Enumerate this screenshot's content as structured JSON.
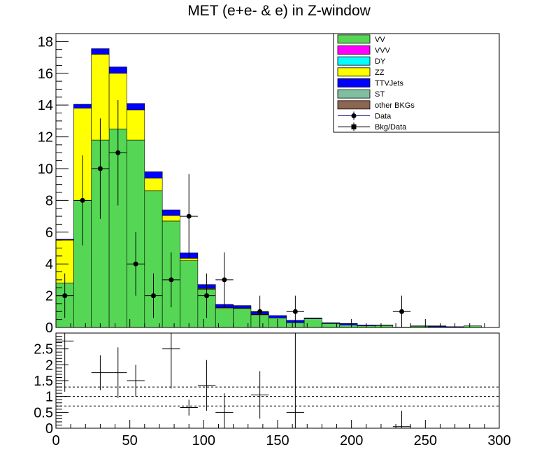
{
  "chart_data": {
    "title": "MET (e+e- & e) in Z-window",
    "type": "stacked-histogram",
    "bin_width": 12,
    "x_range": [
      0,
      300
    ],
    "x_ticks": [
      "0",
      "50",
      "100",
      "150",
      "200",
      "250",
      "300"
    ],
    "main": {
      "y_range": [
        0,
        18.5
      ],
      "y_ticks": [
        "0",
        "2",
        "4",
        "6",
        "8",
        "10",
        "12",
        "14",
        "16",
        "18"
      ],
      "bin_edges": [
        0,
        12,
        24,
        36,
        48,
        60,
        72,
        84,
        96,
        108,
        120,
        132,
        144,
        156,
        168,
        180,
        192,
        204,
        216,
        228,
        240,
        252,
        264,
        276,
        288,
        300
      ],
      "stack": [
        {
          "name": "VV",
          "color": "#55d755",
          "values": [
            2.8,
            8.0,
            11.8,
            12.5,
            11.8,
            8.6,
            6.7,
            4.2,
            2.4,
            1.2,
            1.2,
            0.8,
            0.6,
            0.3,
            0.55,
            0.25,
            0.15,
            0.1,
            0.12,
            0.02,
            0.08,
            0.05,
            0.0,
            0.1,
            0.0
          ]
        },
        {
          "name": "VVV",
          "color": "#ff00ff",
          "values": [
            0,
            0,
            0,
            0,
            0,
            0,
            0,
            0,
            0,
            0,
            0,
            0,
            0,
            0,
            0,
            0,
            0,
            0,
            0,
            0,
            0,
            0,
            0,
            0,
            0
          ]
        },
        {
          "name": "DY",
          "color": "#00ffff",
          "values": [
            0,
            0,
            0,
            0,
            0,
            0,
            0,
            0,
            0,
            0,
            0,
            0,
            0,
            0,
            0,
            0,
            0,
            0,
            0,
            0,
            0,
            0,
            0,
            0,
            0
          ]
        },
        {
          "name": "ZZ",
          "color": "#ffff00",
          "values": [
            2.7,
            5.8,
            5.4,
            3.5,
            1.9,
            0.8,
            0.35,
            0.15,
            0.05,
            0.05,
            0.03,
            0.02,
            0,
            0,
            0,
            0,
            0,
            0,
            0,
            0,
            0,
            0,
            0,
            0,
            0
          ]
        },
        {
          "name": "TTVJets",
          "color": "#0000ff",
          "values": [
            0.05,
            0.25,
            0.35,
            0.4,
            0.4,
            0.4,
            0.35,
            0.35,
            0.25,
            0.2,
            0.15,
            0.15,
            0.15,
            0.15,
            0.05,
            0.05,
            0.1,
            0.05,
            0.03,
            0.0,
            0.02,
            0.05,
            0.05,
            0.0,
            0.0
          ]
        },
        {
          "name": "ST",
          "color": "#7fbf9f",
          "values": [
            0,
            0,
            0,
            0,
            0,
            0,
            0,
            0,
            0,
            0,
            0,
            0,
            0,
            0,
            0,
            0,
            0,
            0,
            0,
            0,
            0,
            0,
            0,
            0,
            0
          ]
        },
        {
          "name": "other BKGs",
          "color": "#8c6650",
          "values": [
            0,
            0,
            0,
            0,
            0,
            0,
            0,
            0,
            0,
            0,
            0,
            0,
            0,
            0,
            0,
            0,
            0,
            0,
            0,
            0,
            0,
            0,
            0,
            0,
            0
          ]
        }
      ],
      "data_points": [
        {
          "x": 6,
          "y": 2,
          "err": 1.4
        },
        {
          "x": 18,
          "y": 8,
          "err": 2.83
        },
        {
          "x": 30,
          "y": 10,
          "err": 3.16
        },
        {
          "x": 42,
          "y": 11,
          "err": 3.32
        },
        {
          "x": 54,
          "y": 4,
          "err": 2.0
        },
        {
          "x": 66,
          "y": 2,
          "err": 1.4
        },
        {
          "x": 78,
          "y": 3,
          "err": 1.73
        },
        {
          "x": 90,
          "y": 7,
          "err": 2.65
        },
        {
          "x": 102,
          "y": 2,
          "err": 1.4
        },
        {
          "x": 114,
          "y": 3,
          "err": 1.73
        },
        {
          "x": 138,
          "y": 1,
          "err": 1.0
        },
        {
          "x": 162,
          "y": 1,
          "err": 1.0
        },
        {
          "x": 234,
          "y": 1,
          "err": 1.0
        }
      ],
      "legend": {
        "position": "top-right",
        "entries": [
          {
            "label": "VV",
            "kind": "box",
            "color": "#55d755"
          },
          {
            "label": "VVV",
            "kind": "box",
            "color": "#ff00ff"
          },
          {
            "label": "DY",
            "kind": "box",
            "color": "#00ffff"
          },
          {
            "label": "ZZ",
            "kind": "box",
            "color": "#ffff00"
          },
          {
            "label": "TTVJets",
            "kind": "box",
            "color": "#0000ff"
          },
          {
            "label": "ST",
            "kind": "box",
            "color": "#7fbf9f"
          },
          {
            "label": "other BKGs",
            "kind": "box",
            "color": "#8c6650"
          },
          {
            "label": "Data",
            "kind": "circle",
            "color": "#000080"
          },
          {
            "label": "Bkg/Data",
            "kind": "square",
            "color": "#000000"
          }
        ]
      }
    },
    "ratio": {
      "y_range": [
        0,
        3.0
      ],
      "y_ticks": [
        "0",
        "0.5",
        "1",
        "1.5",
        "2",
        "2.5"
      ],
      "reference_lines": [
        0.7,
        1.0,
        1.3
      ],
      "points": [
        {
          "x": 6,
          "y": 2.75,
          "err": 1.6
        },
        {
          "x": 30,
          "y": 1.75,
          "err": 0.55
        },
        {
          "x": 42,
          "y": 1.75,
          "err": 0.8
        },
        {
          "x": 54,
          "y": 1.5,
          "err": 0.5
        },
        {
          "x": 78,
          "y": 2.5,
          "err": 1.25
        },
        {
          "x": 90,
          "y": 0.65,
          "err": 0.25
        },
        {
          "x": 102,
          "y": 1.35,
          "err": 0.8
        },
        {
          "x": 114,
          "y": 0.5,
          "err": 0.6
        },
        {
          "x": 138,
          "y": 1.05,
          "err": 0.75
        },
        {
          "x": 162,
          "y": 0.5,
          "err": 2.5
        },
        {
          "x": 234,
          "y": 0.05,
          "err": 0.5
        }
      ]
    }
  }
}
